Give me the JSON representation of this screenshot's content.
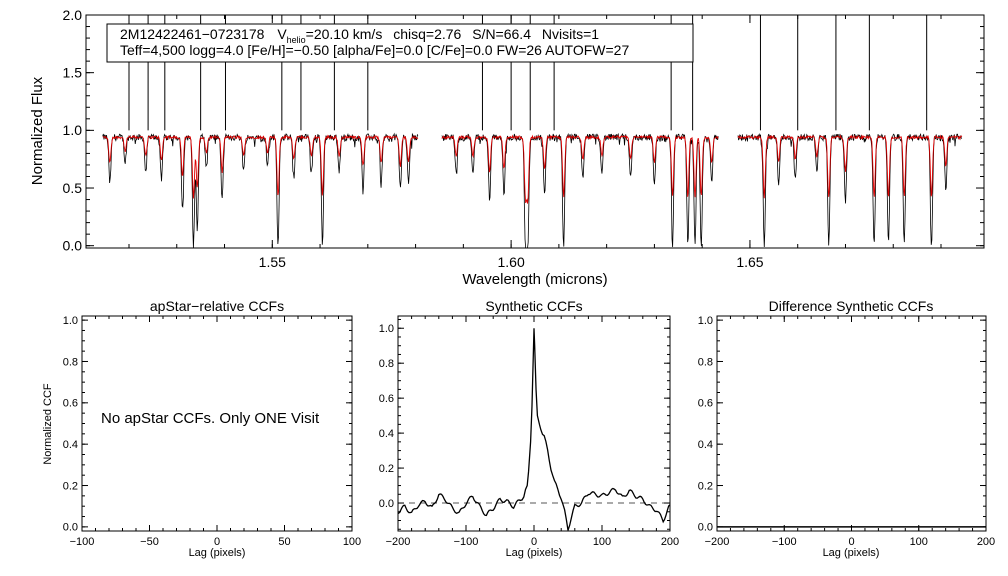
{
  "colors": {
    "observed": "#000000",
    "model": "#dd0000",
    "axis": "#000000",
    "zero_line": "#555555"
  },
  "chart_data": [
    {
      "type": "line",
      "title": "",
      "xlabel": "Wavelength (microns)",
      "ylabel": "Normalized Flux",
      "xlim": [
        1.511,
        1.699
      ],
      "ylim": [
        -0.02,
        2.0
      ],
      "xticks": [
        1.55,
        1.6,
        1.65
      ],
      "xticklabels": [
        "1.55",
        "1.60",
        "1.65"
      ],
      "yticks": [
        0.0,
        0.5,
        1.0,
        1.5,
        2.0
      ],
      "yticklabels": [
        "0.0",
        "0.5",
        "1.0",
        "1.5",
        "2.0"
      ],
      "chips": [
        [
          1.5145,
          1.5805
        ],
        [
          1.5855,
          1.6435
        ],
        [
          1.6475,
          1.6945
        ]
      ],
      "legend_box": {
        "line1": {
          "star_id": "2M12422461−0723178",
          "v_label": "V",
          "v_sub": "helio",
          "v_value": "=20.10 km/s",
          "chisq": "chisq=2.76",
          "snr": "S/N=66.4",
          "nvisits": "Nvisits=1"
        },
        "line2": "Teff=4,500 logg=4.0 [Fe/H]=−0.50 [alpha/Fe]=0.0 [C/Fe]=0.0 FW=26 AUTOFW=27"
      },
      "series": [
        {
          "name": "observed spectrum",
          "color": "#000000",
          "continuum": 0.94,
          "noise": 0.018,
          "absorption": [
            {
              "x": 1.516,
              "depth": 0.4
            },
            {
              "x": 1.5192,
              "depth": 0.22
            },
            {
              "x": 1.5235,
              "depth": 0.3
            },
            {
              "x": 1.5268,
              "depth": 0.36
            },
            {
              "x": 1.5312,
              "depth": 0.62
            },
            {
              "x": 1.5335,
              "depth": 0.95
            },
            {
              "x": 1.5343,
              "depth": 0.8
            },
            {
              "x": 1.5362,
              "depth": 0.25
            },
            {
              "x": 1.5395,
              "depth": 0.55
            },
            {
              "x": 1.544,
              "depth": 0.3
            },
            {
              "x": 1.549,
              "depth": 0.25
            },
            {
              "x": 1.5512,
              "depth": 0.94
            },
            {
              "x": 1.5545,
              "depth": 0.35
            },
            {
              "x": 1.5582,
              "depth": 0.3
            },
            {
              "x": 1.5605,
              "depth": 0.94
            },
            {
              "x": 1.564,
              "depth": 0.3
            },
            {
              "x": 1.569,
              "depth": 0.45
            },
            {
              "x": 1.5728,
              "depth": 0.4
            },
            {
              "x": 1.5768,
              "depth": 0.45
            },
            {
              "x": 1.5785,
              "depth": 0.4
            },
            {
              "x": 1.5885,
              "depth": 0.3
            },
            {
              "x": 1.592,
              "depth": 0.3
            },
            {
              "x": 1.5955,
              "depth": 0.55
            },
            {
              "x": 1.5985,
              "depth": 0.5
            },
            {
              "x": 1.603,
              "depth": 0.94
            },
            {
              "x": 1.6035,
              "depth": 0.94
            },
            {
              "x": 1.607,
              "depth": 0.5
            },
            {
              "x": 1.611,
              "depth": 0.94
            },
            {
              "x": 1.615,
              "depth": 0.35
            },
            {
              "x": 1.619,
              "depth": 0.3
            },
            {
              "x": 1.625,
              "depth": 0.35
            },
            {
              "x": 1.63,
              "depth": 0.4
            },
            {
              "x": 1.6338,
              "depth": 0.94
            },
            {
              "x": 1.637,
              "depth": 0.94
            },
            {
              "x": 1.6385,
              "depth": 0.94
            },
            {
              "x": 1.6398,
              "depth": 0.94
            },
            {
              "x": 1.642,
              "depth": 0.4
            },
            {
              "x": 1.653,
              "depth": 0.94
            },
            {
              "x": 1.656,
              "depth": 0.4
            },
            {
              "x": 1.6595,
              "depth": 0.35
            },
            {
              "x": 1.664,
              "depth": 0.3
            },
            {
              "x": 1.6665,
              "depth": 0.94
            },
            {
              "x": 1.67,
              "depth": 0.55
            },
            {
              "x": 1.676,
              "depth": 0.94
            },
            {
              "x": 1.679,
              "depth": 0.94
            },
            {
              "x": 1.6823,
              "depth": 0.94
            },
            {
              "x": 1.688,
              "depth": 0.94
            },
            {
              "x": 1.691,
              "depth": 0.45
            }
          ],
          "spikes": [
            1.52,
            1.524,
            1.5275,
            1.535,
            1.5402,
            1.552,
            1.556,
            1.563,
            1.57,
            1.594,
            1.6,
            1.604,
            1.609,
            1.6335,
            1.638,
            1.6522,
            1.66,
            1.668,
            1.675,
            1.687
          ]
        },
        {
          "name": "synthetic model",
          "color": "#dd0000",
          "continuum": 0.94,
          "noise": 0.008
        }
      ]
    },
    {
      "type": "line",
      "title": "apStar−relative CCFs",
      "xlabel": "Lag (pixels)",
      "ylabel": "Normalized CCF",
      "xlim": [
        -100,
        100
      ],
      "ylim": [
        -0.02,
        1.02
      ],
      "xticks": [
        -100,
        -50,
        0,
        50,
        100
      ],
      "xticklabels": [
        "−100",
        "−50",
        "0",
        "50",
        "100"
      ],
      "yticks": [
        0.0,
        0.2,
        0.4,
        0.6,
        0.8,
        1.0
      ],
      "yticklabels": [
        "0.0",
        "0.2",
        "0.4",
        "0.6",
        "0.8",
        "1.0"
      ],
      "annotation": "No apStar CCFs.  Only ONE Visit",
      "series": []
    },
    {
      "type": "line",
      "title": "Synthetic CCFs",
      "xlabel": "Lag (pixels)",
      "ylabel": "",
      "xlim": [
        -200,
        200
      ],
      "ylim": [
        -0.16,
        1.07
      ],
      "xticks": [
        -200,
        -100,
        0,
        100,
        200
      ],
      "xticklabels": [
        "−200",
        "−100",
        "0",
        "100",
        "200"
      ],
      "yticks": [
        0.0,
        0.2,
        0.4,
        0.6,
        0.8,
        1.0
      ],
      "yticklabels": [
        "0.0",
        "0.2",
        "0.4",
        "0.6",
        "0.8",
        "1.0"
      ],
      "reference_line": 0.0,
      "series": [
        {
          "name": "synthetic CCF",
          "x": [
            -200,
            -190,
            -180,
            -170,
            -160,
            -150,
            -140,
            -130,
            -120,
            -110,
            -100,
            -90,
            -80,
            -70,
            -60,
            -50,
            -40,
            -30,
            -20,
            -15,
            -10,
            -8,
            -5,
            -3,
            -1,
            0,
            1,
            3,
            5,
            8,
            10,
            15,
            20,
            25,
            30,
            35,
            40,
            45,
            50,
            55,
            60,
            70,
            80,
            90,
            100,
            110,
            120,
            130,
            140,
            150,
            160,
            170,
            180,
            190,
            200
          ],
          "y": [
            -0.05,
            -0.02,
            -0.06,
            -0.01,
            0.01,
            -0.03,
            0.05,
            0.02,
            -0.03,
            -0.06,
            0.0,
            0.04,
            -0.02,
            -0.07,
            -0.03,
            0.02,
            0.01,
            -0.02,
            0.02,
            0.04,
            0.1,
            0.18,
            0.35,
            0.55,
            0.85,
            1.0,
            0.9,
            0.65,
            0.5,
            0.45,
            0.42,
            0.38,
            0.3,
            0.2,
            0.12,
            0.08,
            0.03,
            -0.05,
            -0.15,
            -0.08,
            -0.02,
            0.0,
            0.06,
            0.05,
            0.04,
            0.06,
            0.08,
            0.03,
            0.07,
            0.04,
            0.02,
            -0.02,
            -0.04,
            -0.1,
            -0.01
          ]
        }
      ]
    },
    {
      "type": "line",
      "title": "Difference Synthetic CCFs",
      "xlabel": "Lag (pixels)",
      "ylabel": "",
      "xlim": [
        -200,
        200
      ],
      "ylim": [
        -0.02,
        1.02
      ],
      "xticks": [
        -200,
        -100,
        0,
        100,
        200
      ],
      "xticklabels": [
        "−200",
        "−100",
        "0",
        "100",
        "200"
      ],
      "yticks": [
        0.0,
        0.2,
        0.4,
        0.6,
        0.8,
        1.0
      ],
      "yticklabels": [
        "0.0",
        "0.2",
        "0.4",
        "0.6",
        "0.8",
        "1.0"
      ],
      "series": [
        {
          "name": "difference CCF",
          "x": [
            -200,
            200
          ],
          "y": [
            0.0,
            0.0
          ]
        }
      ]
    }
  ]
}
